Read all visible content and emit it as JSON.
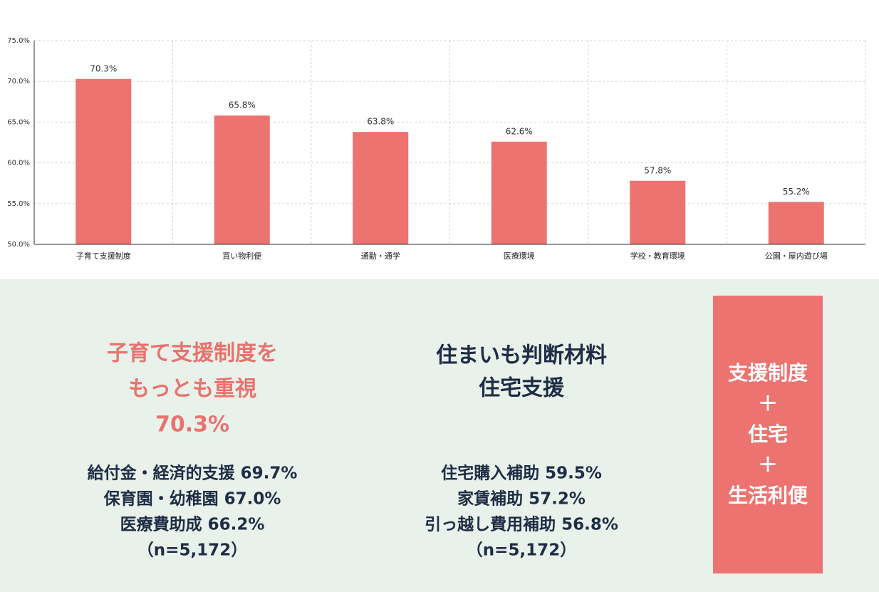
{
  "chart_data": {
    "type": "bar",
    "categories": [
      "子育て支援制度",
      "買い物利便",
      "通勤・通学",
      "医療環境",
      "学校・教育環境",
      "公園・屋内遊び場"
    ],
    "values": [
      70.3,
      65.8,
      63.8,
      62.6,
      57.8,
      55.2
    ],
    "value_labels": [
      "70.3%",
      "65.8%",
      "63.8%",
      "62.6%",
      "57.8%",
      "55.2%"
    ],
    "color": "#ec7370",
    "ylim": [
      50,
      75
    ],
    "yticks": [
      {
        "value": 50,
        "label": "50.0%"
      },
      {
        "value": 55,
        "label": "55.0%"
      },
      {
        "value": 60,
        "label": "60.0%"
      },
      {
        "value": 65,
        "label": "65.0%"
      },
      {
        "value": 70,
        "label": "70.0%"
      },
      {
        "value": 75,
        "label": "75.0%"
      }
    ],
    "grid": true
  },
  "panels": {
    "left": {
      "title": [
        "子育て支援制度を",
        "もっとも重視",
        "70.3%"
      ],
      "items": [
        "給付金・経済的支援 69.7%",
        "保育園・幼稚園 67.0%",
        "医療費助成 66.2%",
        "（n=5,172）"
      ]
    },
    "middle": {
      "title": [
        "住まいも判断材料",
        "住宅支援"
      ],
      "items": [
        "住宅購入補助 59.5%",
        "家賃補助 57.2%",
        "引っ越し費用補助 56.8%",
        "（n=5,172）"
      ]
    },
    "box": [
      "支援制度",
      "＋",
      "住宅",
      "＋",
      "生活利便"
    ]
  }
}
